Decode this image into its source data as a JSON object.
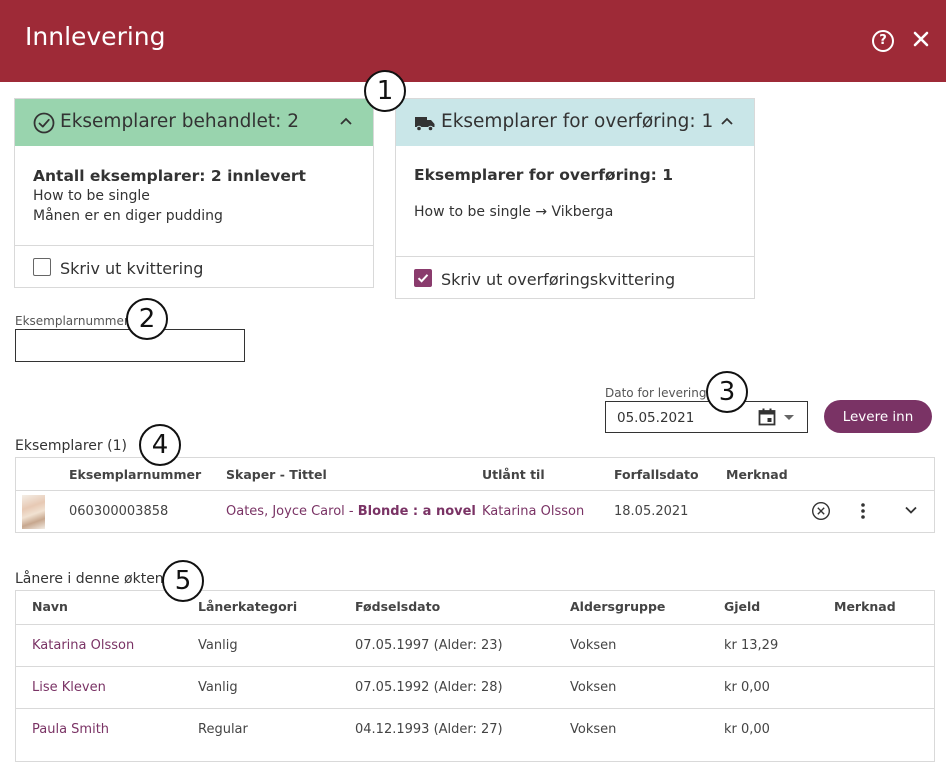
{
  "header": {
    "title": "Innlevering",
    "help_icon": "help-circle-icon",
    "close_icon": "close-icon",
    "color": "#9e2a37"
  },
  "callouts": [
    "1",
    "2",
    "3",
    "4",
    "5"
  ],
  "panel_processed": {
    "title": "Eksemplarer behandlet: 2",
    "header_color": "#99d4ae",
    "count_label": "Antall eksemplarer: 2 innlevert",
    "items": [
      "How to be single",
      "Månen er en diger pudding"
    ],
    "checkbox_label": "Skriv ut kvittering",
    "checkbox_checked": false
  },
  "panel_transfer": {
    "title": "Eksemplarer for overføring: 1",
    "header_color": "#c9e6e8",
    "count_label": "Eksemplarer for overføring: 1",
    "item": "How to be single → Vikberga",
    "checkbox_label": "Skriv ut overføringskvittering",
    "checkbox_checked": true
  },
  "item_number_field": {
    "label": "Eksemplarnummer",
    "value": ""
  },
  "delivery_date": {
    "label": "Dato for levering",
    "value": "05.05.2021"
  },
  "submit_button": {
    "label": "Levere inn",
    "color": "#7a3365"
  },
  "items_table": {
    "title": "Eksemplarer (1)",
    "headers": [
      "Eksemplarnummer",
      "Skaper - Tittel",
      "Utlånt til",
      "Forfallsdato",
      "Merknad"
    ],
    "rows": [
      {
        "number": "060300003858",
        "creator": "Oates, Joyce Carol",
        "separator": " - ",
        "title": "Blonde : a novel",
        "borrower": "Katarina Olsson",
        "due": "18.05.2021",
        "note": ""
      }
    ]
  },
  "borrowers_table": {
    "title": "Lånere i denne økten",
    "headers": [
      "Navn",
      "Lånerkategori",
      "Fødselsdato",
      "Aldersgruppe",
      "Gjeld",
      "Merknad"
    ],
    "rows": [
      {
        "name": "Katarina Olsson",
        "category": "Vanlig",
        "birth": "07.05.1997 (Alder: 23)",
        "age_group": "Voksen",
        "debt": "kr 13,29",
        "note": ""
      },
      {
        "name": "Lise Kleven",
        "category": "Vanlig",
        "birth": "07.05.1992 (Alder: 28)",
        "age_group": "Voksen",
        "debt": "kr 0,00",
        "note": ""
      },
      {
        "name": "Paula Smith",
        "category": "Regular",
        "birth": "04.12.1993 (Alder: 27)",
        "age_group": "Voksen",
        "debt": "kr 0,00",
        "note": ""
      }
    ]
  }
}
